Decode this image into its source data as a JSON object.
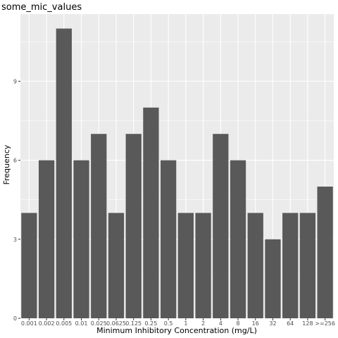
{
  "chart_data": {
    "type": "bar",
    "title": "some_mic_values",
    "xlabel": "Minimum Inhibitory Concentration (mg/L)",
    "ylabel": "Frequency",
    "categories": [
      "0.001",
      "0.002",
      "0.005",
      "0.01",
      "0.025",
      "0.0625",
      "0.125",
      "0.25",
      "0.5",
      "1",
      "2",
      "4",
      "8",
      "16",
      "32",
      "64",
      "128",
      ">=256"
    ],
    "values": [
      4,
      6,
      11,
      6,
      7,
      4,
      7,
      8,
      6,
      4,
      4,
      7,
      6,
      4,
      3,
      4,
      4,
      5
    ],
    "ylim": [
      0,
      11.55
    ],
    "yticks": [
      0,
      3,
      6,
      9
    ],
    "grid": true,
    "legend": "none",
    "colors": {
      "panel": "#ebebeb",
      "grid": "#ffffff",
      "bar": "#595959",
      "tick_text": "#4d4d4d",
      "text": "#000000"
    }
  }
}
